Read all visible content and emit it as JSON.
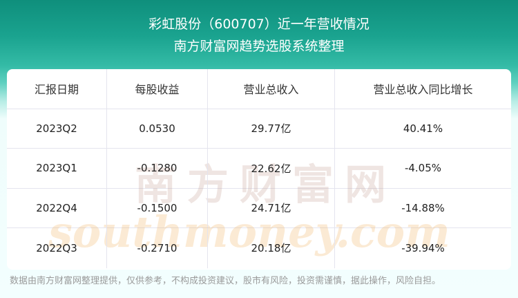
{
  "header": {
    "title": "彩虹股份（600707）近一年营收情况",
    "subtitle": "南方财富网趋势选股系统整理"
  },
  "table": {
    "columns": [
      "汇报日期",
      "每股收益",
      "营业总收入",
      "营业总收入同比增长"
    ],
    "rows": [
      [
        "2023Q2",
        "0.0530",
        "29.77亿",
        "40.41%"
      ],
      [
        "2023Q1",
        "-0.1280",
        "22.62亿",
        "-4.05%"
      ],
      [
        "2022Q4",
        "-0.1500",
        "24.71亿",
        "-14.88%"
      ],
      [
        "2022Q3",
        "-0.2710",
        "20.18亿",
        "-39.94%"
      ]
    ]
  },
  "watermark": {
    "cn": "南方财富网",
    "en": "southmoney.com"
  },
  "footer": "数据由南方财富网整理提供，仅供参考，不构成投资建议，股市有风险，投资需谨慎，据此操作，风险自担。",
  "colors": {
    "header_bg": "#0f8f7c",
    "table_bg": "#ffffff",
    "footer_text": "#9a9a9a"
  }
}
